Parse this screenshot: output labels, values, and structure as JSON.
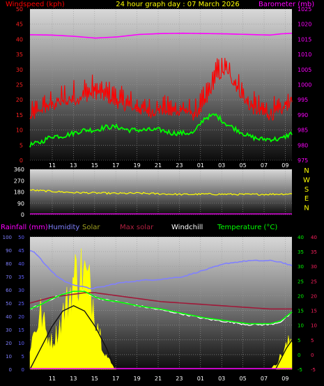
{
  "header": {
    "wind_label": "Windspeed (kph)",
    "title": "24 hour graph day : 07 March 2026",
    "baro_label": "Barometer (mb)"
  },
  "legend2": {
    "rainfall": "Rainfall (mm)",
    "humidity": "Humidity",
    "solar": "Solar",
    "max_solar": "Max solar",
    "windchill": "Windchill",
    "temperature": "Temperature (°C)"
  },
  "compass": [
    "N",
    "W",
    "S",
    "E",
    "N"
  ],
  "colors": {
    "wind": "#ff0000",
    "wind_avg": "#00ff00",
    "barometer": "#ff00ff",
    "direction": "#ffff00",
    "humidity": "#8080ff",
    "solar": "#ffff00",
    "max_solar": "#111111",
    "rainfall": "#ff00ff",
    "temperature": "#00ff00",
    "windchill": "#ffffff",
    "max_solar_label": "#b02040",
    "rain_axis": "#6060ff",
    "temp_axis": "#00ff00",
    "right_axis": "#ff2060"
  },
  "chart_data": [
    {
      "type": "line",
      "name": "wind-barometer",
      "x_tick_labels": [
        "11",
        "13",
        "15",
        "17",
        "19",
        "21",
        "23",
        "01",
        "03",
        "05",
        "07",
        "09"
      ],
      "y_left": {
        "label": "Windspeed (kph)",
        "ticks": [
          0,
          5,
          10,
          15,
          20,
          25,
          30,
          35,
          40,
          45,
          50
        ],
        "ylim": [
          0,
          50
        ]
      },
      "y_right": {
        "label": "Barometer (mb)",
        "ticks": [
          975,
          980,
          985,
          990,
          995,
          1000,
          1005,
          1010,
          1015,
          1020,
          1025
        ],
        "ylim": [
          975,
          1025
        ]
      },
      "series": [
        {
          "name": "Windspeed",
          "axis": "left",
          "x": [
            0,
            1,
            2,
            3,
            4,
            5,
            6,
            7,
            8,
            9,
            10,
            11,
            12,
            13,
            14,
            15,
            16,
            17,
            18,
            19,
            20,
            21,
            22,
            23,
            24
          ],
          "values": [
            12,
            15,
            16,
            17,
            18,
            19,
            20,
            19,
            17,
            16,
            15,
            14,
            15,
            14,
            15,
            13,
            16,
            25,
            28,
            22,
            16,
            14,
            13,
            14,
            18
          ]
        },
        {
          "name": "Gust",
          "axis": "left",
          "x": [
            0,
            1,
            2,
            3,
            4,
            5,
            6,
            7,
            8,
            9,
            10,
            11,
            12,
            13,
            14,
            15,
            16,
            17,
            18,
            19,
            20,
            21,
            22,
            23,
            24
          ],
          "values": [
            19,
            22,
            24,
            26,
            27,
            28,
            29,
            27,
            25,
            24,
            22,
            21,
            22,
            21,
            22,
            20,
            25,
            34,
            35,
            30,
            24,
            22,
            21,
            22,
            26
          ]
        },
        {
          "name": "Average",
          "axis": "left",
          "x": [
            0,
            1,
            2,
            3,
            4,
            5,
            6,
            7,
            8,
            9,
            10,
            11,
            12,
            13,
            14,
            15,
            16,
            17,
            18,
            19,
            20,
            21,
            22,
            23,
            24
          ],
          "values": [
            5,
            6,
            8,
            8,
            9,
            10,
            10,
            11,
            11,
            10,
            10,
            10,
            10,
            9,
            9,
            9,
            14,
            15,
            12,
            10,
            8,
            7,
            7,
            7,
            9
          ]
        },
        {
          "name": "Barometer",
          "axis": "right",
          "x": [
            0,
            2,
            4,
            6,
            8,
            10,
            12,
            14,
            16,
            18,
            20,
            22,
            23,
            24
          ],
          "values": [
            1016.5,
            1016.4,
            1016.0,
            1015.4,
            1015.8,
            1016.6,
            1016.9,
            1017.0,
            1016.9,
            1016.8,
            1016.6,
            1016.4,
            1016.8,
            1017.0
          ]
        }
      ]
    },
    {
      "type": "line",
      "name": "wind-direction",
      "x_tick_labels": [
        "11",
        "13",
        "15",
        "17",
        "19",
        "21",
        "23",
        "01",
        "03",
        "05",
        "07",
        "09"
      ],
      "y_left": {
        "ticks": [
          0,
          90,
          180,
          270,
          360
        ],
        "ylim": [
          0,
          360
        ]
      },
      "series": [
        {
          "name": "Direction",
          "x": [
            0,
            2,
            4,
            6,
            8,
            10,
            12,
            14,
            16,
            18,
            20,
            22,
            24
          ],
          "values": [
            195,
            185,
            175,
            172,
            168,
            170,
            165,
            160,
            163,
            162,
            160,
            162,
            165
          ]
        }
      ]
    },
    {
      "type": "line",
      "name": "temp-humidity-solar",
      "x_tick_labels": [
        "11",
        "13",
        "15",
        "17",
        "19",
        "21",
        "23",
        "01",
        "03",
        "05",
        "07",
        "09"
      ],
      "y_left_outer": {
        "label": "Humidity",
        "ticks": [
          0,
          10,
          20,
          30,
          40,
          50,
          60,
          70,
          80,
          90,
          100
        ],
        "ylim": [
          0,
          100
        ]
      },
      "y_left_inner": {
        "label": "Rainfall (mm)",
        "ticks": [
          0,
          5,
          10,
          15,
          20,
          25,
          30,
          35,
          40,
          45,
          50
        ],
        "ylim": [
          0,
          50
        ]
      },
      "y_right_inner": {
        "label": "Temperature (°C)",
        "ticks": [
          -5,
          0,
          5,
          10,
          15,
          20,
          25,
          30,
          35,
          40
        ],
        "ylim": [
          -5,
          40
        ]
      },
      "y_right_outer": {
        "ticks": [
          -5,
          0,
          5,
          10,
          15,
          20,
          25,
          30,
          35,
          40
        ],
        "ylim": [
          -5,
          40
        ]
      },
      "series": [
        {
          "name": "Humidity",
          "x": [
            0,
            0.5,
            1.5,
            2.5,
            3.5,
            4.5,
            5.5,
            6.5,
            8,
            10,
            12,
            14,
            16,
            18,
            20,
            22,
            23,
            24
          ],
          "values": [
            90,
            88,
            78,
            70,
            65,
            63,
            61,
            62,
            65,
            67,
            68,
            70,
            75,
            80,
            82,
            82,
            81,
            78
          ]
        },
        {
          "name": "Temperature",
          "x": [
            0,
            1,
            2,
            3,
            4,
            5,
            6,
            7,
            8,
            10,
            12,
            14,
            16,
            18,
            20,
            22,
            23,
            24
          ],
          "values": [
            15.5,
            17,
            19,
            20.5,
            21.5,
            21.5,
            19.5,
            18.5,
            18,
            16.5,
            15.5,
            14,
            12.5,
            11.5,
            10.5,
            10.5,
            11.5,
            14.5
          ]
        },
        {
          "name": "Windchill",
          "x": [
            0,
            1,
            2,
            3,
            4,
            5,
            6,
            7,
            8,
            10,
            12,
            14,
            16,
            18,
            20,
            22,
            23,
            24
          ],
          "values": [
            15.5,
            17,
            19,
            20.5,
            21.5,
            21.5,
            19.5,
            18.5,
            18,
            16.5,
            15.2,
            13.8,
            12.2,
            11.2,
            10.2,
            10.2,
            11.2,
            14.2
          ]
        },
        {
          "name": "Max solar",
          "x": [
            0,
            1,
            2,
            3,
            4,
            5,
            6,
            7,
            8,
            9,
            10,
            12,
            14,
            16,
            18,
            20,
            22,
            23,
            24
          ],
          "values": [
            17.5,
            18.5,
            19.5,
            20,
            20.5,
            21,
            21,
            20.5,
            20,
            19.5,
            19,
            18,
            17.5,
            17,
            16.5,
            16,
            15.5,
            15.5,
            15.5
          ]
        },
        {
          "name": "Solar",
          "x": [
            0,
            0.5,
            1,
            1.5,
            2,
            2.5,
            3,
            3.5,
            4,
            4.5,
            5,
            5.5,
            6,
            6.5,
            7,
            7.5,
            8,
            22,
            22.5,
            23,
            23.5,
            24
          ],
          "values": [
            10,
            18,
            25,
            16,
            12,
            16,
            24,
            30,
            40,
            44,
            42,
            36,
            26,
            14,
            6,
            2,
            0,
            0,
            2,
            6,
            10,
            14
          ]
        },
        {
          "name": "Max solar",
          "x": [
            0,
            1,
            2,
            3,
            4,
            5,
            6,
            7,
            7.8,
            22.5,
            23,
            23.5,
            24
          ],
          "values": [
            0,
            8,
            16,
            22,
            24,
            22,
            16,
            8,
            0,
            0,
            4,
            8,
            11
          ]
        },
        {
          "name": "Rainfall",
          "x": [
            0,
            24
          ],
          "values": [
            0,
            0
          ]
        }
      ]
    }
  ]
}
